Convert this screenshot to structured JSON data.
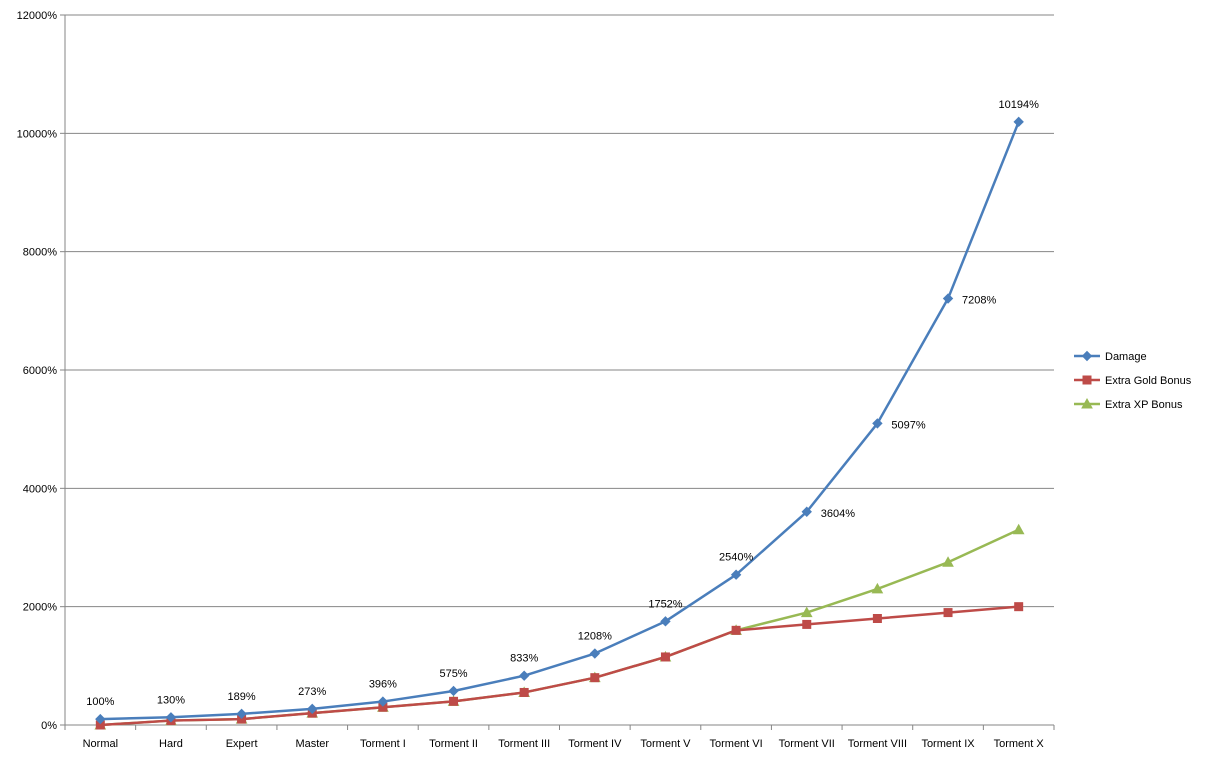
{
  "chart_data": {
    "type": "line",
    "title": "",
    "xlabel": "",
    "ylabel": "",
    "categories": [
      "Normal",
      "Hard",
      "Expert",
      "Master",
      "Torment I",
      "Torment II",
      "Torment III",
      "Torment IV",
      "Torment V",
      "Torment VI",
      "Torment VII",
      "Torment VIII",
      "Torment IX",
      "Torment X"
    ],
    "ylim": [
      0,
      12000
    ],
    "yticks": [
      0,
      2000,
      4000,
      6000,
      8000,
      10000,
      12000
    ],
    "ytick_labels": [
      "0%",
      "2000%",
      "4000%",
      "6000%",
      "8000%",
      "10000%",
      "12000%"
    ],
    "grid": true,
    "legend_position": "right",
    "series": [
      {
        "name": "Damage",
        "color": "#4a7ebb",
        "marker": "diamond",
        "values": [
          100,
          130,
          189,
          273,
          396,
          575,
          833,
          1208,
          1752,
          2540,
          3604,
          5097,
          7208,
          10194
        ],
        "data_labels": [
          "100%",
          "130%",
          "189%",
          "273%",
          "396%",
          "575%",
          "833%",
          "1208%",
          "1752%",
          "2540%",
          "3604%",
          "5097%",
          "7208%",
          "10194%"
        ]
      },
      {
        "name": "Extra Gold Bonus",
        "color": "#be4b48",
        "marker": "square",
        "values": [
          0,
          75,
          100,
          200,
          300,
          400,
          550,
          800,
          1150,
          1600,
          1700,
          1800,
          1900,
          2000
        ]
      },
      {
        "name": "Extra XP Bonus",
        "color": "#98b954",
        "marker": "triangle",
        "values": [
          0,
          75,
          100,
          200,
          300,
          400,
          550,
          800,
          1150,
          1600,
          1900,
          2300,
          2750,
          3300
        ]
      }
    ]
  }
}
